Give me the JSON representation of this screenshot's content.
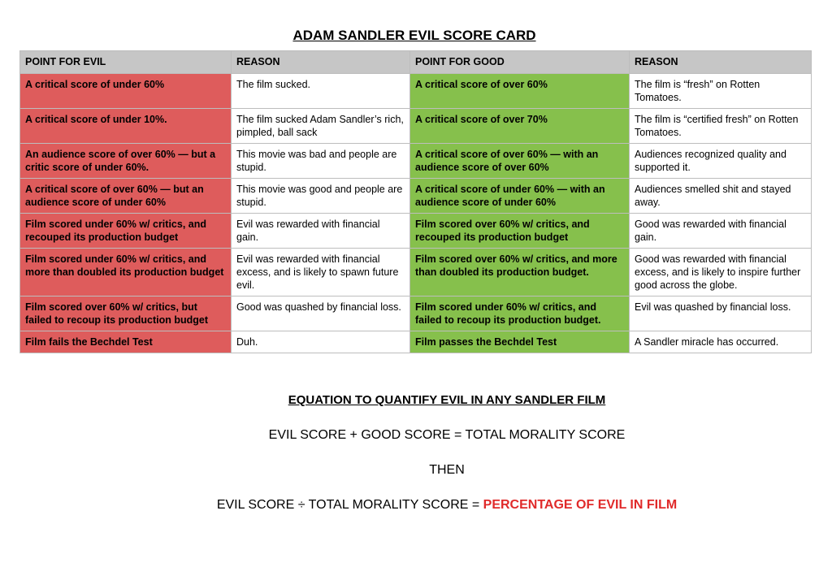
{
  "title": "ADAM SANDLER EVIL SCORE CARD",
  "colors": {
    "evil_cell": "#de5c5c",
    "good_cell": "#86c04c",
    "header_bg": "#c6c6c6",
    "highlight_text": "#e02a2a"
  },
  "table": {
    "headers": [
      "POINT FOR EVIL",
      "REASON",
      "POINT FOR GOOD",
      "REASON"
    ],
    "rows": [
      {
        "evil": "A critical score of under 60%",
        "evil_reason": "The film sucked.",
        "good": "A critical score of over 60%",
        "good_reason": "The film is “fresh” on Rotten Tomatoes."
      },
      {
        "evil": "A critical score of under 10%.",
        "evil_reason": "The film sucked Adam Sandler’s rich, pimpled, ball sack",
        "good": "A critical score of over 70%",
        "good_reason": "The film is “certified fresh” on Rotten Tomatoes."
      },
      {
        "evil": "An audience score of over 60% — but a critic score of under 60%.",
        "evil_reason": "This movie was bad and people are stupid.",
        "good": "A critical score of over 60% — with an audience score of over 60%",
        "good_reason": "Audiences recognized quality and supported it."
      },
      {
        "evil": "A critical score of over 60% — but an audience score of under 60%",
        "evil_reason": "This movie was good and people are stupid.",
        "good": "A critical score of under 60% — with an audience score of under 60%",
        "good_reason": "Audiences smelled shit and stayed away."
      },
      {
        "evil": "Film scored under 60% w/ critics, and recouped its production budget",
        "evil_reason": "Evil was rewarded with financial gain.",
        "good": "Film scored over 60% w/ critics, and recouped its production budget",
        "good_reason": "Good was rewarded with financial gain."
      },
      {
        "evil": "Film scored under 60% w/ critics, and more than doubled its production budget",
        "evil_reason": "Evil was rewarded with financial excess, and is likely to spawn future evil.",
        "good": "Film scored over 60% w/ critics, and more than doubled its production budget.",
        "good_reason": "Good was rewarded with financial excess, and is likely to inspire further good across the globe."
      },
      {
        "evil": "Film scored over 60% w/ critics, but failed to recoup its production budget",
        "evil_reason": "Good was quashed by financial loss.",
        "good": "Film scored under 60% w/ critics, and failed to recoup its production budget.",
        "good_reason": "Evil was quashed by financial loss."
      },
      {
        "evil": "Film fails the Bechdel Test",
        "evil_reason": "Duh.",
        "good": "Film passes the Bechdel Test",
        "good_reason": "A Sandler miracle has occurred."
      }
    ]
  },
  "equation": {
    "heading": "EQUATION TO QUANTIFY EVIL IN ANY SANDLER FILM",
    "line1": "EVIL SCORE + GOOD SCORE = TOTAL MORALITY SCORE",
    "then": "THEN",
    "line2_prefix": "EVIL SCORE ÷ TOTAL MORALITY SCORE = ",
    "line2_result": "PERCENTAGE OF EVIL IN FILM"
  }
}
